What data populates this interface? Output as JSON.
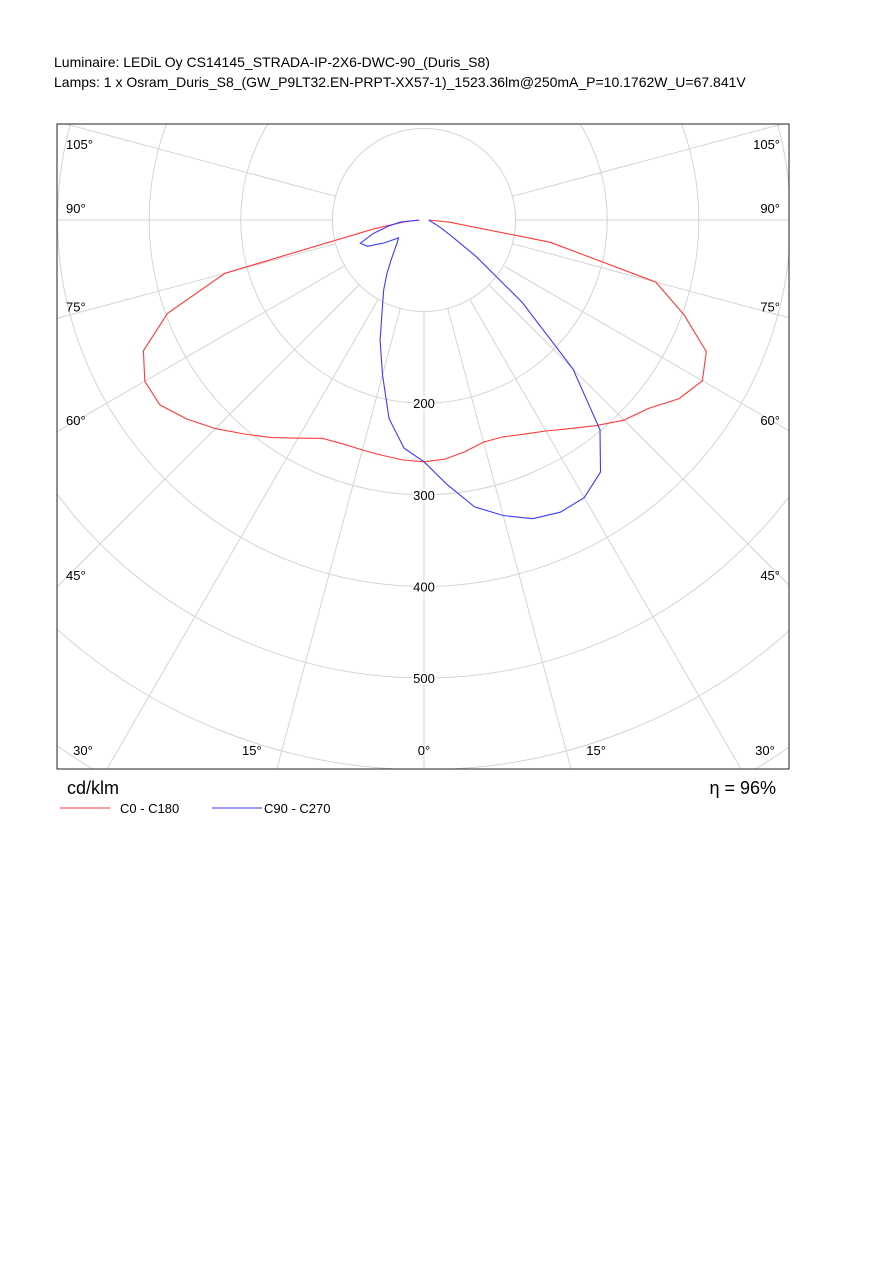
{
  "header": {
    "luminaire": "Luminaire: LEDiL Oy CS14145_STRADA-IP-2X6-DWC-90_(Duris_S8)",
    "lamps": "Lamps: 1 x Osram_Duris_S8_(GW_P9LT32.EN-PRPT-XX57-1)_1523.36lm@250mA_P=10.1762W_U=67.841V"
  },
  "chart_data": {
    "type": "polar",
    "unit_label": "cd/klm",
    "annotation": "η = 96%",
    "angles": [
      -90,
      -85,
      -80,
      -75,
      -70,
      -65,
      -60,
      -55,
      -50,
      -45,
      -40,
      -35,
      -30,
      -25,
      -20,
      -15,
      -10,
      -5,
      0,
      5,
      10,
      15,
      20,
      25,
      30,
      35,
      40,
      45,
      50,
      55,
      60,
      65,
      70,
      75,
      80,
      85,
      90
    ],
    "series": [
      {
        "name": "C0 - C180",
        "color": "#ff3b3b",
        "values": [
          5,
          20,
          55,
          225,
          298,
          338,
          352,
          352,
          338,
          322,
          305,
          290,
          275,
          263,
          260,
          260,
          261,
          263,
          264,
          262,
          257,
          251,
          252,
          258,
          266,
          278,
          293,
          309,
          320,
          340,
          351,
          340,
          302,
          262,
          140,
          28,
          5
        ]
      },
      {
        "name": "C90 - C270",
        "color": "#3b3bff",
        "values": [
          5,
          26,
          40,
          58,
          74,
          68,
          50,
          34,
          38,
          45,
          55,
          70,
          88,
          108,
          140,
          175,
          220,
          250,
          264,
          290,
          318,
          334,
          347,
          352,
          350,
          336,
          299,
          230,
          140,
          70,
          33,
          20,
          13,
          9,
          7,
          6,
          5
        ]
      }
    ],
    "rlim": [
      0,
      500
    ],
    "rticks": [
      200,
      300,
      400,
      500
    ],
    "xticks": [
      {
        "value": -105,
        "label": "105°"
      },
      {
        "value": -90,
        "label": "90°"
      },
      {
        "value": -75,
        "label": "75°"
      },
      {
        "value": -60,
        "label": "60°"
      },
      {
        "value": -45,
        "label": "45°"
      },
      {
        "value": -30,
        "label": "30°"
      },
      {
        "value": -15,
        "label": "15°"
      },
      {
        "value": 0,
        "label": "0°"
      },
      {
        "value": 15,
        "label": "15°"
      },
      {
        "value": 30,
        "label": "30°"
      },
      {
        "value": 45,
        "label": "45°"
      },
      {
        "value": 60,
        "label": "60°"
      },
      {
        "value": 75,
        "label": "75°"
      },
      {
        "value": 90,
        "label": "90°"
      },
      {
        "value": 105,
        "label": "105°"
      }
    ],
    "grid": true
  }
}
